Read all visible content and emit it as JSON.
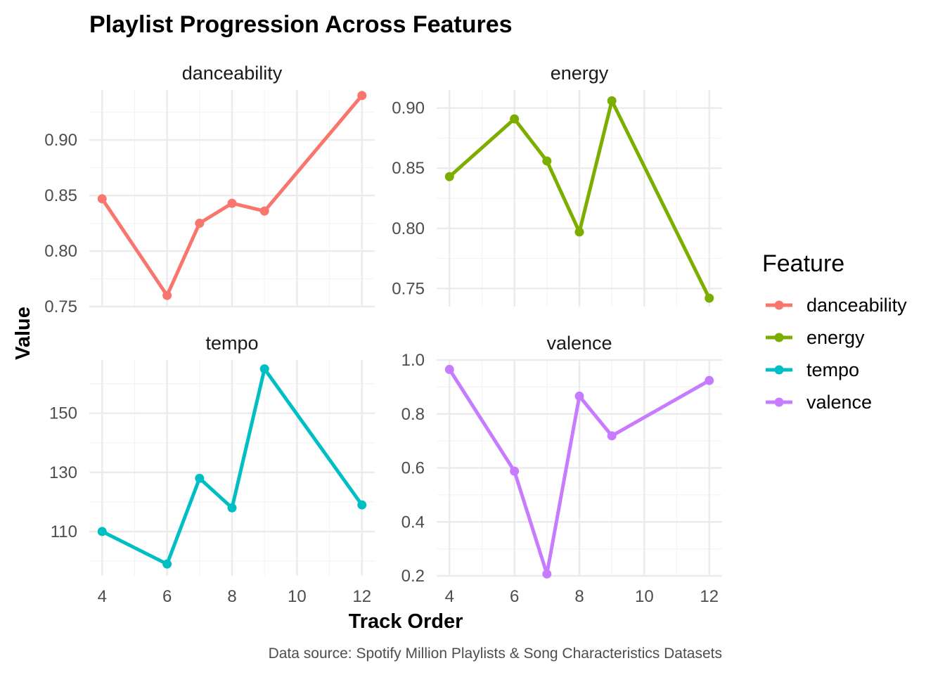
{
  "chart_data": {
    "type": "line",
    "title": "Playlist Progression Across Features",
    "xlabel": "Track Order",
    "ylabel": "Value",
    "caption": "Data source: Spotify Million Playlists & Song Characteristics Datasets",
    "legend": {
      "title": "Feature",
      "placement": "right",
      "entries": [
        "danceability",
        "energy",
        "tempo",
        "valence"
      ]
    },
    "grid": true,
    "x_ticks": [
      "4",
      "6",
      "8",
      "10",
      "12"
    ],
    "xlim": [
      4,
      12
    ],
    "colors": {
      "danceability": "#F8766D",
      "energy": "#7CAE00",
      "tempo": "#00BFC4",
      "valence": "#C77CFF"
    },
    "panels": [
      {
        "name": "danceability",
        "ylim": [
          0.75,
          0.945
        ],
        "y_ticks": [
          0.75,
          0.8,
          0.85,
          0.9
        ],
        "y_tick_labels": [
          "0.75",
          "0.80",
          "0.85",
          "0.90"
        ],
        "x": [
          4,
          6,
          7,
          8,
          9,
          12
        ],
        "values": [
          0.847,
          0.76,
          0.825,
          0.843,
          0.836,
          0.94
        ]
      },
      {
        "name": "energy",
        "ylim": [
          0.735,
          0.915
        ],
        "y_ticks": [
          0.75,
          0.8,
          0.85,
          0.9
        ],
        "y_tick_labels": [
          "0.75",
          "0.80",
          "0.85",
          "0.90"
        ],
        "x": [
          4,
          6,
          7,
          8,
          9,
          12
        ],
        "values": [
          0.843,
          0.891,
          0.856,
          0.797,
          0.906,
          0.742
        ]
      },
      {
        "name": "tempo",
        "ylim": [
          95,
          168
        ],
        "y_ticks": [
          110,
          130,
          150
        ],
        "y_tick_labels": [
          "110",
          "130",
          "150"
        ],
        "x": [
          4,
          6,
          7,
          8,
          9,
          12
        ],
        "values": [
          110,
          99,
          128,
          118,
          165,
          119
        ]
      },
      {
        "name": "valence",
        "ylim": [
          0.2,
          1.0
        ],
        "y_ticks": [
          0.2,
          0.4,
          0.6,
          0.8,
          1.0
        ],
        "y_tick_labels": [
          "0.2",
          "0.4",
          "0.6",
          "0.8",
          "1.0"
        ],
        "x": [
          4,
          6,
          7,
          8,
          9,
          12
        ],
        "values": [
          0.965,
          0.588,
          0.207,
          0.866,
          0.719,
          0.924
        ]
      }
    ]
  }
}
